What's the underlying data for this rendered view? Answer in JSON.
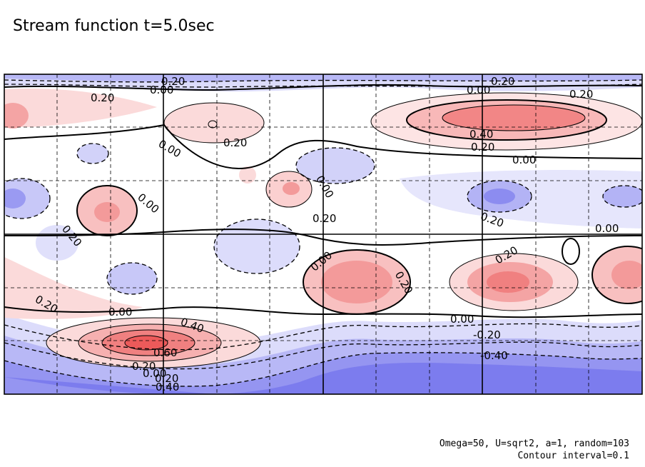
{
  "title": "Stream function t=5.0sec",
  "notes": {
    "params": "Omega=50, U=sqrt2, a=1, random=103",
    "interval": "Contour interval=0.1"
  },
  "chart_data": {
    "type": "heatmap",
    "title": "Stream function t=5.0sec",
    "contour_interval": 0.1,
    "colors": {
      "positive": "#f26b6b",
      "negative": "#7777ee",
      "zero": "#ffffff"
    },
    "contour_labels": [
      {
        "text": "0.20"
      },
      {
        "text": "0.00"
      },
      {
        "text": "0.20"
      },
      {
        "text": "0.00"
      },
      {
        "text": "0.20"
      },
      {
        "text": "0.20"
      },
      {
        "text": "0.00"
      },
      {
        "text": "0.20"
      },
      {
        "text": "0.40"
      },
      {
        "text": "0.20"
      },
      {
        "text": "0.00"
      },
      {
        "text": "0.00"
      },
      {
        "text": "0.00"
      },
      {
        "text": "0.20"
      },
      {
        "text": "0.20"
      },
      {
        "text": "0.00"
      },
      {
        "text": "0.20"
      },
      {
        "text": "0.20"
      },
      {
        "text": "0.00"
      },
      {
        "text": "0.20"
      },
      {
        "text": "0.20"
      },
      {
        "text": "0.00"
      },
      {
        "text": "0.40"
      },
      {
        "text": "0.00"
      },
      {
        "text": "-0.20"
      },
      {
        "text": "-0.40"
      },
      {
        "text": "0.60"
      },
      {
        "text": "0.20"
      },
      {
        "text": "0.20"
      },
      {
        "text": "0.00"
      },
      {
        "text": "0.40"
      }
    ],
    "features": [
      {
        "kind": "max",
        "label": "0.60"
      },
      {
        "kind": "max",
        "label": "0.40"
      },
      {
        "kind": "min",
        "label": "-0.40"
      },
      {
        "kind": "max",
        "label": "0.20"
      },
      {
        "kind": "max",
        "label": "0.20"
      },
      {
        "kind": "min",
        "label": "-0.20"
      }
    ],
    "grid": true
  }
}
